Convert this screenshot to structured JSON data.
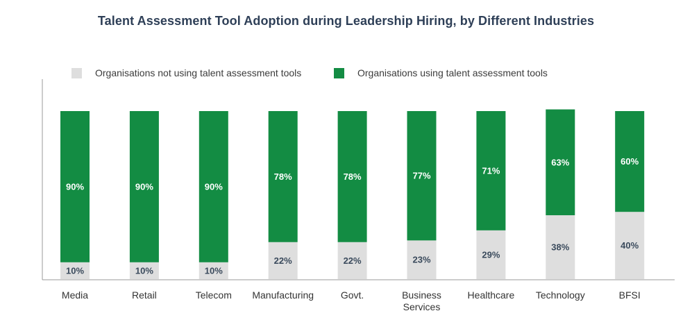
{
  "chart_data": {
    "type": "bar",
    "stacked": true,
    "title": "Talent Assessment Tool Adoption during Leadership Hiring, by Different Industries",
    "xlabel": "",
    "ylabel": "",
    "ylim": [
      0,
      100
    ],
    "grid": false,
    "legend_position": "top-left",
    "categories": [
      [
        "Media"
      ],
      [
        "Retail"
      ],
      [
        "Telecom"
      ],
      [
        "Manufacturing"
      ],
      [
        "Govt."
      ],
      [
        "Business",
        "Services"
      ],
      [
        "Healthcare"
      ],
      [
        "Technology"
      ],
      [
        "BFSI"
      ]
    ],
    "series": [
      {
        "name": "Organisations not using talent assessment tools",
        "color": "#dedede",
        "label_color": "#3a4a5c",
        "values": [
          10,
          10,
          10,
          22,
          22,
          23,
          29,
          38,
          40
        ],
        "labels": [
          "10%",
          "10%",
          "10%",
          "22%",
          "22%",
          "23%",
          "29%",
          "38%",
          "40%"
        ]
      },
      {
        "name": "Organisations using talent assessment tools",
        "color": "#138c43",
        "label_color": "#ffffff",
        "values": [
          90,
          90,
          90,
          78,
          78,
          77,
          71,
          63,
          60
        ],
        "labels": [
          "90%",
          "90%",
          "90%",
          "78%",
          "78%",
          "77%",
          "71%",
          "63%",
          "60%"
        ]
      }
    ]
  }
}
